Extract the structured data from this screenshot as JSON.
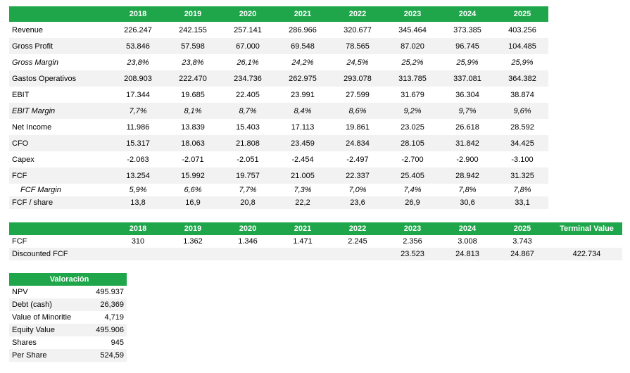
{
  "years": [
    "2018",
    "2019",
    "2020",
    "2021",
    "2022",
    "2023",
    "2024",
    "2025"
  ],
  "main_rows": [
    {
      "label": "Revenue",
      "values": [
        "226.247",
        "242.155",
        "257.141",
        "286.966",
        "320.677",
        "345.464",
        "373.385",
        "403.256"
      ]
    },
    {
      "label": "Gross Profit",
      "values": [
        "53.846",
        "57.598",
        "67.000",
        "69.548",
        "78.565",
        "87.020",
        "96.745",
        "104.485"
      ]
    },
    {
      "label": "Gross Margin",
      "values": [
        "23,8%",
        "23,8%",
        "26,1%",
        "24,2%",
        "24,5%",
        "25,2%",
        "25,9%",
        "25,9%"
      ]
    },
    {
      "label": "Gastos Operativos",
      "values": [
        "208.903",
        "222.470",
        "234.736",
        "262.975",
        "293.078",
        "313.785",
        "337.081",
        "364.382"
      ]
    },
    {
      "label": "EBIT",
      "values": [
        "17.344",
        "19.685",
        "22.405",
        "23.991",
        "27.599",
        "31.679",
        "36.304",
        "38.874"
      ]
    },
    {
      "label": "EBIT Margin",
      "values": [
        "7,7%",
        "8,1%",
        "8,7%",
        "8,4%",
        "8,6%",
        "9,2%",
        "9,7%",
        "9,6%"
      ]
    },
    {
      "label": "Net Income",
      "values": [
        "11.986",
        "13.839",
        "15.403",
        "17.113",
        "19.861",
        "23.025",
        "26.618",
        "28.592"
      ]
    },
    {
      "label": "CFO",
      "values": [
        "15.317",
        "18.063",
        "21.808",
        "23.459",
        "24.834",
        "28.105",
        "31.842",
        "34.425"
      ]
    },
    {
      "label": "Capex",
      "values": [
        "-2.063",
        "-2.071",
        "-2.051",
        "-2.454",
        "-2.497",
        "-2.700",
        "-2.900",
        "-3.100"
      ]
    },
    {
      "label": "FCF",
      "values": [
        "13.254",
        "15.992",
        "19.757",
        "21.005",
        "22.337",
        "25.405",
        "28.942",
        "31.325"
      ]
    },
    {
      "label": "FCF Margin",
      "values": [
        "5,9%",
        "6,6%",
        "7,7%",
        "7,3%",
        "7,0%",
        "7,4%",
        "7,8%",
        "7,8%"
      ]
    },
    {
      "label": "FCF / share",
      "values": [
        "13,8",
        "16,9",
        "20,8",
        "22,2",
        "23,6",
        "26,9",
        "30,6",
        "33,1"
      ]
    }
  ],
  "dcf": {
    "terminal_header": "Terminal Value",
    "fcf_label": "FCF",
    "fcf_values": [
      "310",
      "1.362",
      "1.346",
      "1.471",
      "2.245",
      "2.356",
      "3.008",
      "3.743",
      ""
    ],
    "disc_label": "Discounted FCF",
    "disc_values": [
      "",
      "",
      "",
      "",
      "",
      "23.523",
      "24.813",
      "24.867",
      "422.734"
    ]
  },
  "valuation": {
    "title": "Valoración",
    "rows": [
      {
        "label": "NPV",
        "value": "495.937"
      },
      {
        "label": "Debt (cash)",
        "value": "26,369"
      },
      {
        "label": "Value of Minoritie",
        "value": "4,719"
      },
      {
        "label": "Equity Value",
        "value": "495.906"
      },
      {
        "label": "Shares",
        "value": "945"
      },
      {
        "label": "Per Share",
        "value": "524,59"
      }
    ]
  }
}
